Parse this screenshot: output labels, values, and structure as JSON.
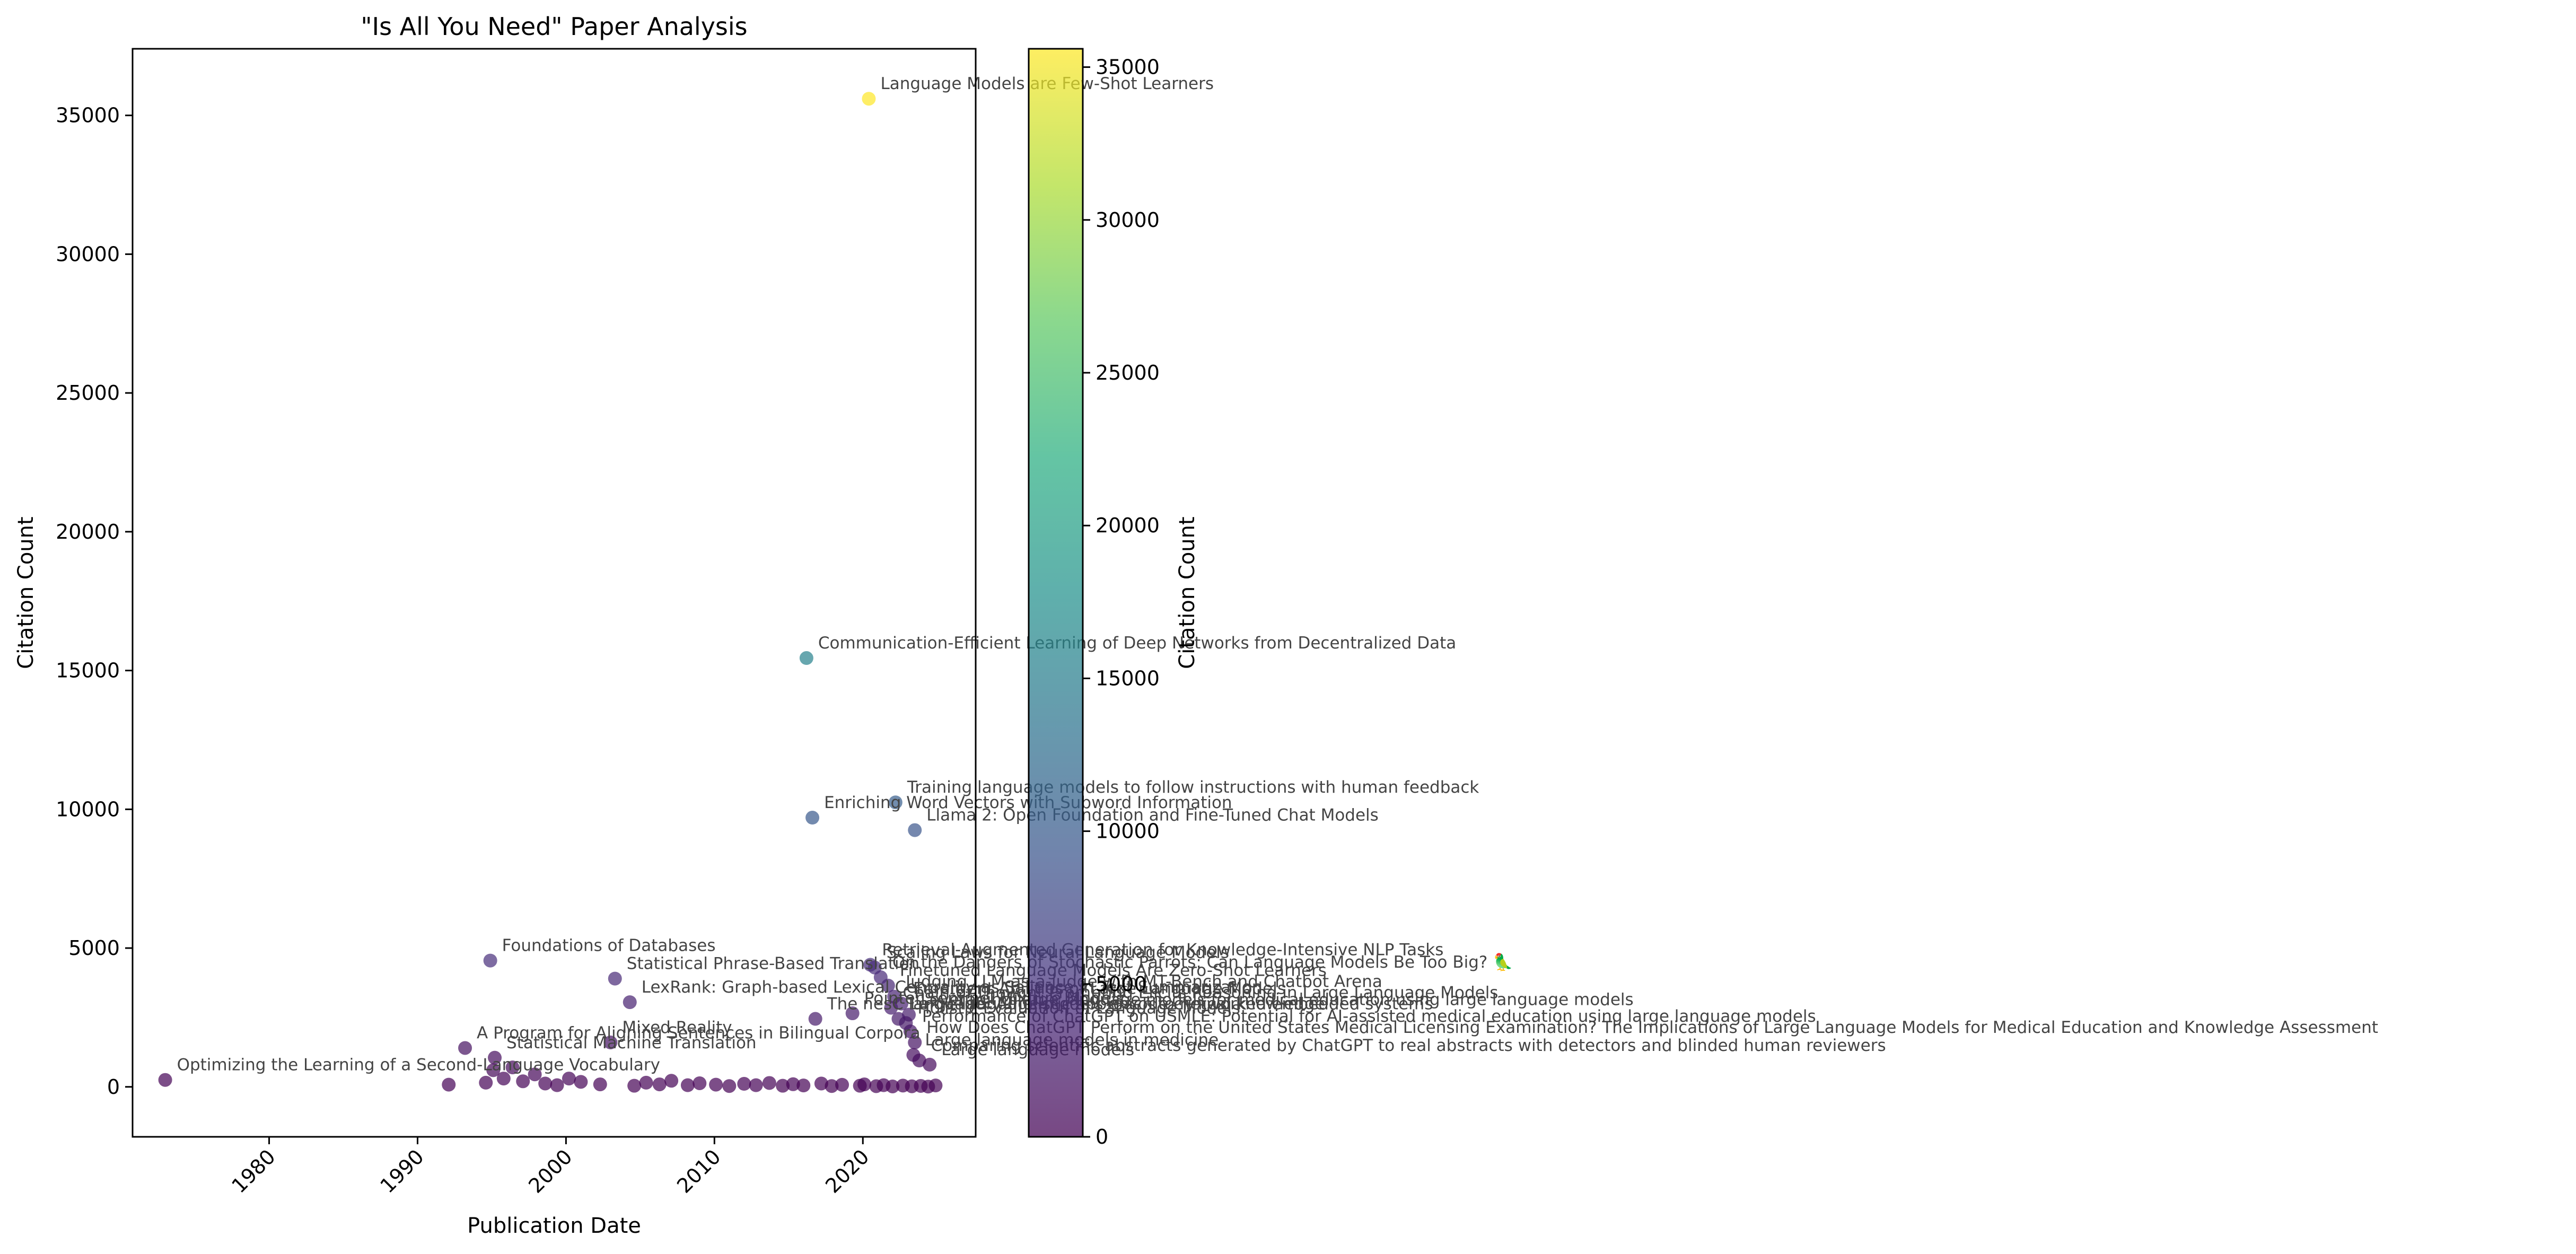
{
  "chart_data": {
    "type": "scatter",
    "title": "\"Is All You Need\" Paper Analysis",
    "xlabel": "Publication Date",
    "ylabel": "Citation Count",
    "xlim": [
      1970.8,
      2027.6
    ],
    "ylim": [
      -1800,
      37400
    ],
    "xticks": [
      1980,
      1990,
      2000,
      2010,
      2020
    ],
    "yticks": [
      0,
      5000,
      10000,
      15000,
      20000,
      25000,
      30000,
      35000
    ],
    "grid": false,
    "colormap": "viridis",
    "point_alpha": 0.7,
    "colorbar": {
      "label": "Citation Count",
      "range": [
        0,
        35600
      ],
      "ticks": [
        0,
        5000,
        10000,
        15000,
        20000,
        25000,
        30000,
        35000
      ]
    },
    "labeled_points": [
      {
        "x": 2020.4,
        "y": 35600,
        "label": "Language Models are Few-Shot Learners"
      },
      {
        "x": 2016.2,
        "y": 15450,
        "label": "Communication-Efficient Learning of Deep Networks from Decentralized Data"
      },
      {
        "x": 2022.2,
        "y": 10250,
        "label": "Training language models to follow instructions with human feedback"
      },
      {
        "x": 2016.6,
        "y": 9700,
        "label": "Enriching Word Vectors with Subword Information"
      },
      {
        "x": 2023.5,
        "y": 9250,
        "label": "Llama 2: Open Foundation and Fine-Tuned Chat Models"
      },
      {
        "x": 1994.9,
        "y": 4550,
        "label": "Foundations of Databases"
      },
      {
        "x": 2020.5,
        "y": 4400,
        "label": "Retrieval-Augmented Generation for Knowledge-Intensive NLP Tasks"
      },
      {
        "x": 2020.8,
        "y": 4300,
        "label": "Scaling Laws for Neural Language Models"
      },
      {
        "x": 2021.2,
        "y": 3950,
        "label": "On the Dangers of Stochastic Parrots: Can Language Models Be Too Big? 🦜"
      },
      {
        "x": 2003.3,
        "y": 3900,
        "label": "Statistical Phrase-Based Translation"
      },
      {
        "x": 2021.7,
        "y": 3650,
        "label": "Finetuned Language Models Are Zero-Shot Learners"
      },
      {
        "x": 2004.3,
        "y": 3050,
        "label": "LexRank: Graph-based Lexical Centrality as Salience in Text Summarization"
      },
      {
        "x": 2022.1,
        "y": 3250,
        "label": "Judging LLM-as-a-judge with MT-Bench and Chatbot Arena"
      },
      {
        "x": 2022.6,
        "y": 3000,
        "label": "Emergent Abilities of Large Language Models"
      },
      {
        "x": 2021.9,
        "y": 2850,
        "label": "Chain-of-Thought Prompting Elicits Reasoning in Large Language Models"
      },
      {
        "x": 2019.3,
        "y": 2650,
        "label": "Pointer Sentinel Mixture Models"
      },
      {
        "x": 2022.4,
        "y": 2450,
        "label": "Large language models encode clinical knowledge"
      },
      {
        "x": 2023.1,
        "y": 2600,
        "label": "Leveraging large language models for medical education using large language models"
      },
      {
        "x": 2016.8,
        "y": 2450,
        "label": "The nesC language: A holistic approach to networked embedded systems"
      },
      {
        "x": 2022.9,
        "y": 2300,
        "label": "Holistic Evaluation of Language Models"
      },
      {
        "x": 2003.0,
        "y": 1600,
        "label": "Mixed Reality"
      },
      {
        "x": 1993.2,
        "y": 1400,
        "label": "A Program for Aligning Sentences in Bilingual Corpora"
      },
      {
        "x": 2023.5,
        "y": 1600,
        "label": "How Does ChatGPT Perform on the United States Medical Licensing Examination? The Implications of Large Language Models for Medical Education and Knowledge Assessment"
      },
      {
        "x": 2023.2,
        "y": 2000,
        "label": "Performance of ChatGPT on USMLE: Potential for AI-assisted medical education using large language models"
      },
      {
        "x": 1995.2,
        "y": 1050,
        "label": "Statistical Machine Translation"
      },
      {
        "x": 2023.8,
        "y": 950,
        "label": "Comparing scientific abstracts generated by ChatGPT to real abstracts with detectors and blinded human reviewers"
      },
      {
        "x": 2023.4,
        "y": 1150,
        "label": "Large language models in medicine"
      },
      {
        "x": 1973.0,
        "y": 250,
        "label": "Optimizing the Learning of a Second-Language Vocabulary"
      },
      {
        "x": 2024.5,
        "y": 800,
        "label": "Large language models"
      }
    ],
    "unlabeled_points": [
      {
        "x": 1992.1,
        "y": 80
      },
      {
        "x": 1994.6,
        "y": 150
      },
      {
        "x": 1995.1,
        "y": 600
      },
      {
        "x": 1995.8,
        "y": 300
      },
      {
        "x": 1996.4,
        "y": 700
      },
      {
        "x": 1997.1,
        "y": 200
      },
      {
        "x": 1997.9,
        "y": 450
      },
      {
        "x": 1998.6,
        "y": 120
      },
      {
        "x": 1999.4,
        "y": 60
      },
      {
        "x": 2000.2,
        "y": 300
      },
      {
        "x": 2001.0,
        "y": 180
      },
      {
        "x": 2002.3,
        "y": 90
      },
      {
        "x": 2004.6,
        "y": 40
      },
      {
        "x": 2005.4,
        "y": 150
      },
      {
        "x": 2006.3,
        "y": 90
      },
      {
        "x": 2007.1,
        "y": 220
      },
      {
        "x": 2008.2,
        "y": 60
      },
      {
        "x": 2009.0,
        "y": 130
      },
      {
        "x": 2010.1,
        "y": 80
      },
      {
        "x": 2011.0,
        "y": 30
      },
      {
        "x": 2012.0,
        "y": 110
      },
      {
        "x": 2012.8,
        "y": 60
      },
      {
        "x": 2013.7,
        "y": 140
      },
      {
        "x": 2014.6,
        "y": 40
      },
      {
        "x": 2015.3,
        "y": 95
      },
      {
        "x": 2016.0,
        "y": 50
      },
      {
        "x": 2017.2,
        "y": 120
      },
      {
        "x": 2017.9,
        "y": 30
      },
      {
        "x": 2018.6,
        "y": 75
      },
      {
        "x": 2019.8,
        "y": 40
      },
      {
        "x": 2020.1,
        "y": 90
      },
      {
        "x": 2020.9,
        "y": 25
      },
      {
        "x": 2021.4,
        "y": 60
      },
      {
        "x": 2022.0,
        "y": 15
      },
      {
        "x": 2022.7,
        "y": 45
      },
      {
        "x": 2023.3,
        "y": 20
      },
      {
        "x": 2023.9,
        "y": 35
      },
      {
        "x": 2024.4,
        "y": 10
      },
      {
        "x": 2024.9,
        "y": 50
      }
    ]
  }
}
